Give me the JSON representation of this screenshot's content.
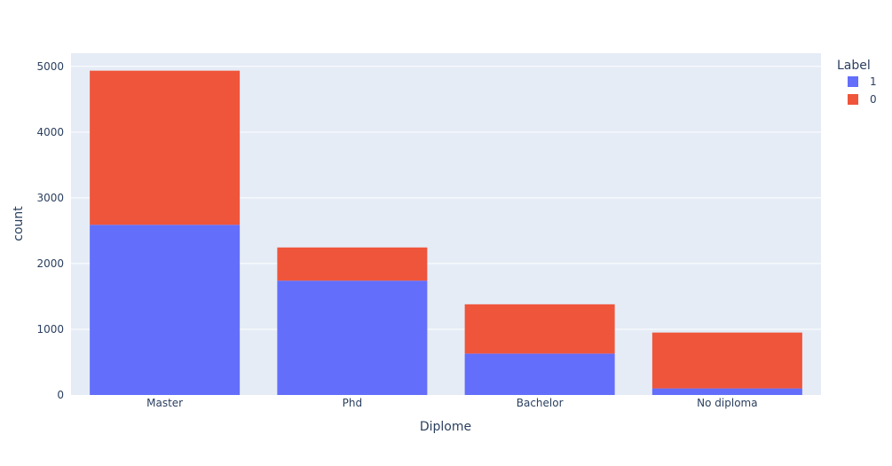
{
  "chart_data": {
    "type": "bar",
    "barmode": "stack",
    "categories": [
      "Master",
      "Phd",
      "Bachelor",
      "No diploma"
    ],
    "series": [
      {
        "name": "1",
        "values": [
          2590,
          1740,
          630,
          100
        ],
        "color": "#636efa"
      },
      {
        "name": "0",
        "values": [
          2345,
          505,
          750,
          850
        ],
        "color": "#ef553b"
      }
    ],
    "xlabel": "Diplome",
    "ylabel": "count",
    "ylim": [
      0,
      5200
    ],
    "yticks": [
      0,
      1000,
      2000,
      3000,
      4000,
      5000
    ],
    "legend": {
      "title": "Label",
      "position": "top-right"
    },
    "grid": true,
    "plot_background": "#e5ecf6"
  }
}
